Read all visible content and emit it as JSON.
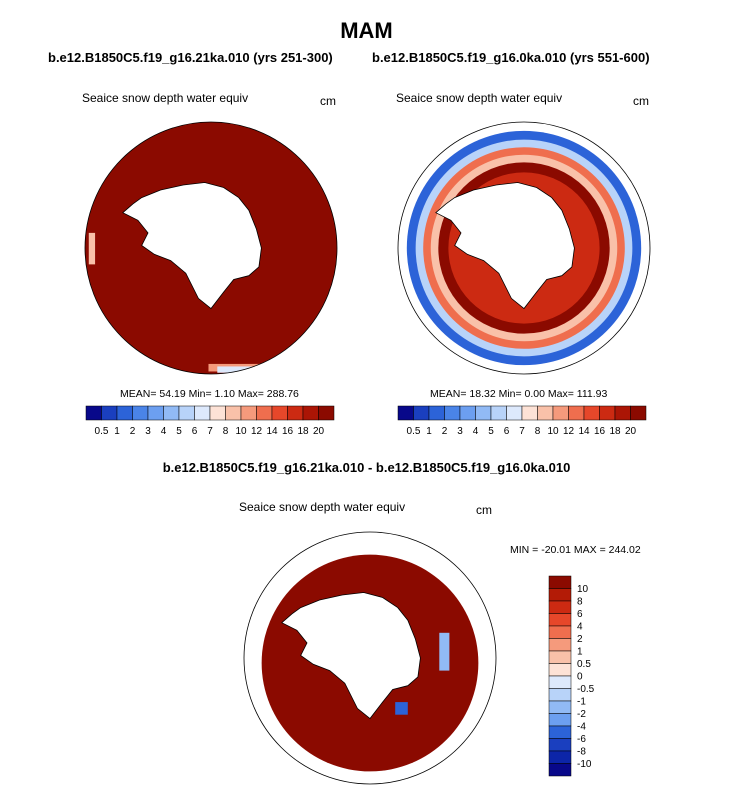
{
  "page": {
    "title": "MAM",
    "left_case_title": "b.e12.B1850C5.f19_g16.21ka.010 (yrs 251-300)",
    "right_case_title": "b.e12.B1850C5.f19_g16.0ka.010 (yrs 551-600)",
    "diff_title": "b.e12.B1850C5.f19_g16.21ka.010 - b.e12.B1850C5.f19_g16.0ka.010"
  },
  "chart_data": [
    {
      "type": "heatmap",
      "projection": "south-polar-stereographic",
      "variable_label": "Seaice snow depth water equiv",
      "units": "cm",
      "stats_text": "MEAN=  54.19  Min=   1.10  Max= 288.76",
      "stats": {
        "mean": 54.19,
        "min": 1.1,
        "max": 288.76
      },
      "colorbar": {
        "orientation": "horizontal",
        "levels": [
          "0.5",
          "1",
          "2",
          "3",
          "4",
          "5",
          "6",
          "7",
          "8",
          "10",
          "12",
          "14",
          "16",
          "18",
          "20"
        ],
        "colors": [
          "#08088a",
          "#1a3fbf",
          "#2c63d8",
          "#4a84e8",
          "#6c9ff0",
          "#91baf5",
          "#b8d3f9",
          "#dde9fc",
          "#fde2d6",
          "#f9c1a9",
          "#f59a7c",
          "#ef6e4e",
          "#e6472a",
          "#cc2a12",
          "#ab1505",
          "#8b0a00"
        ]
      },
      "dominant_value_description": "Sea ice snow depth mostly above 20 cm throughout the ring"
    },
    {
      "type": "heatmap",
      "projection": "south-polar-stereographic",
      "variable_label": "Seaice snow depth water equiv",
      "units": "cm",
      "stats_text": "MEAN=  18.32  Min=   0.00  Max= 111.93",
      "stats": {
        "mean": 18.32,
        "min": 0.0,
        "max": 111.93
      },
      "colorbar": {
        "orientation": "horizontal",
        "levels": [
          "0.5",
          "1",
          "2",
          "3",
          "4",
          "5",
          "6",
          "7",
          "8",
          "10",
          "12",
          "14",
          "16",
          "18",
          "20"
        ],
        "colors": [
          "#08088a",
          "#1a3fbf",
          "#2c63d8",
          "#4a84e8",
          "#6c9ff0",
          "#91baf5",
          "#b8d3f9",
          "#dde9fc",
          "#fde2d6",
          "#f9c1a9",
          "#f59a7c",
          "#ef6e4e",
          "#e6472a",
          "#cc2a12",
          "#ab1505",
          "#8b0a00"
        ]
      }
    },
    {
      "type": "heatmap",
      "projection": "south-polar-stereographic",
      "variable_label": "Seaice snow depth water equiv",
      "units": "cm",
      "stats_text": "MIN = -20.01 MAX = 244.02",
      "stats": {
        "min": -20.01,
        "max": 244.02
      },
      "colorbar": {
        "orientation": "vertical",
        "levels": [
          "10",
          "8",
          "6",
          "4",
          "2",
          "1",
          "0.5",
          "0",
          "-0.5",
          "-1",
          "-2",
          "-4",
          "-6",
          "-8",
          "-10"
        ],
        "colors": [
          "#8b0a00",
          "#b31b06",
          "#cc2a12",
          "#e6472a",
          "#ef6e4e",
          "#f59a7c",
          "#f9c1a9",
          "#fde2d6",
          "#dde9fc",
          "#b8d3f9",
          "#91baf5",
          "#6c9ff0",
          "#2c63d8",
          "#1a3fbf",
          "#0c25a8",
          "#08088a"
        ]
      }
    }
  ]
}
